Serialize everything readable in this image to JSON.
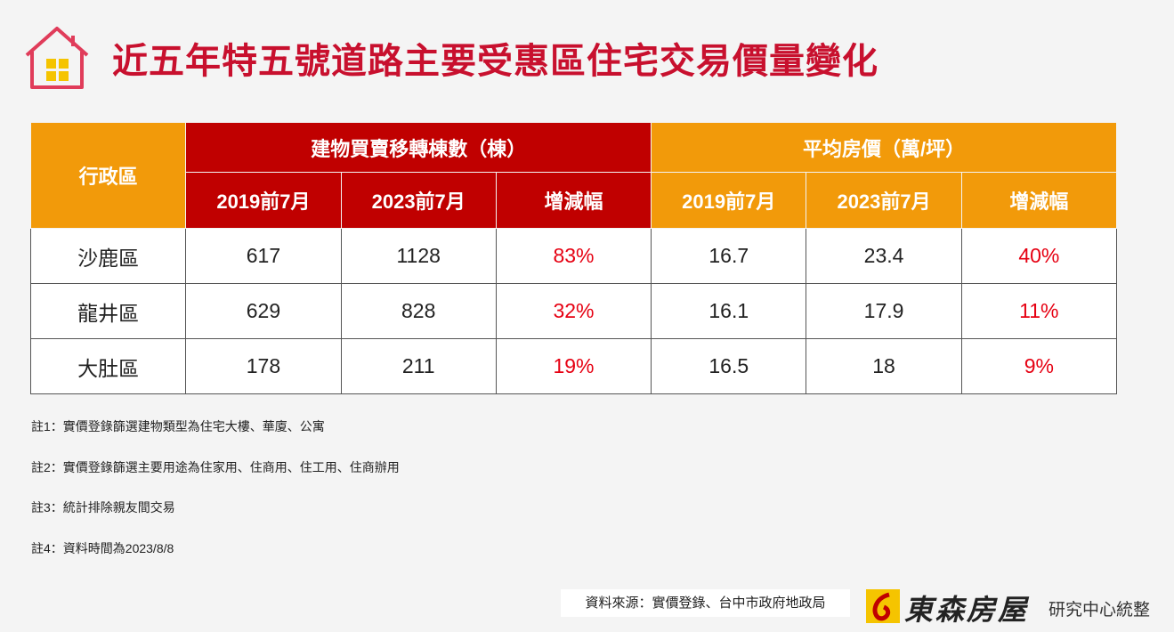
{
  "header": {
    "title": "近五年特五號道路主要受惠區住宅交易價量變化"
  },
  "table": {
    "corner": "行政區",
    "groups": [
      "建物買賣移轉棟數（棟）",
      "平均房價（萬/坪）"
    ],
    "subheaders": [
      "2019前7月",
      "2023前7月",
      "增減幅",
      "2019前7月",
      "2023前7月",
      "增減幅"
    ],
    "rows": [
      [
        "沙鹿區",
        "617",
        "1128",
        "83%",
        "16.7",
        "23.4",
        "40%"
      ],
      [
        "龍井區",
        "629",
        "828",
        "32%",
        "16.1",
        "17.9",
        "11%"
      ],
      [
        "大肚區",
        "178",
        "211",
        "19%",
        "16.5",
        "18",
        "9%"
      ]
    ]
  },
  "notes": [
    "註1：實價登錄篩選建物類型為住宅大樓、華廈、公寓",
    "註2：實價登錄篩選主要用途為住家用、住商用、住工用、住商辦用",
    "註3：統計排除親友間交易",
    "註4：資料時間為2023/8/8"
  ],
  "footer": {
    "source": "資料來源：實價登錄、台中市政府地政局",
    "brand": "東森房屋",
    "unit": "研究中心統整"
  }
}
